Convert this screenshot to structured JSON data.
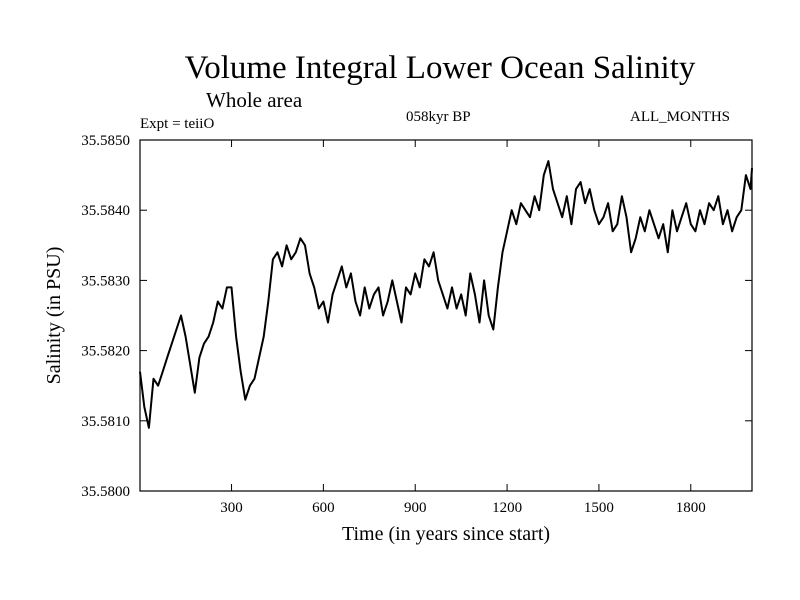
{
  "header": {
    "title": "Volume Integral Lower Ocean Salinity",
    "subtitle": "Whole area",
    "experiment": "Expt = teiiO",
    "period": "058kyr BP",
    "months": "ALL_MONTHS"
  },
  "chart_data": {
    "type": "line",
    "title": "Volume Integral Lower Ocean Salinity",
    "subtitle": "Whole area",
    "xlabel": "Time (in years since start)",
    "ylabel": "Salinity (in PSU)",
    "xlim": [
      1,
      2000
    ],
    "ylim": [
      35.58,
      35.585
    ],
    "xticks": [
      300,
      600,
      900,
      1200,
      1500,
      1800
    ],
    "yticks": [
      35.58,
      35.581,
      35.582,
      35.583,
      35.584,
      35.585
    ],
    "ytick_labels": [
      "35.5800",
      "35.5810",
      "35.5820",
      "35.5830",
      "35.5840",
      "35.5850"
    ],
    "grid": false,
    "series": [
      {
        "color": "#000000",
        "x": [
          1,
          15,
          30,
          45,
          60,
          75,
          90,
          105,
          120,
          135,
          150,
          165,
          180,
          195,
          210,
          225,
          240,
          255,
          270,
          285,
          300,
          315,
          330,
          345,
          360,
          375,
          390,
          405,
          420,
          435,
          450,
          465,
          480,
          495,
          510,
          525,
          540,
          555,
          570,
          585,
          600,
          615,
          630,
          645,
          660,
          675,
          690,
          705,
          720,
          735,
          750,
          765,
          780,
          795,
          810,
          825,
          840,
          855,
          870,
          885,
          900,
          915,
          930,
          945,
          960,
          975,
          990,
          1005,
          1020,
          1035,
          1050,
          1065,
          1080,
          1095,
          1110,
          1125,
          1140,
          1155,
          1170,
          1185,
          1200,
          1215,
          1230,
          1245,
          1260,
          1275,
          1290,
          1305,
          1320,
          1335,
          1350,
          1365,
          1380,
          1395,
          1410,
          1425,
          1440,
          1455,
          1470,
          1485,
          1500,
          1515,
          1530,
          1545,
          1560,
          1575,
          1590,
          1605,
          1620,
          1635,
          1650,
          1665,
          1680,
          1695,
          1710,
          1725,
          1740,
          1755,
          1770,
          1785,
          1800,
          1815,
          1830,
          1845,
          1860,
          1875,
          1890,
          1905,
          1920,
          1935,
          1950,
          1965,
          1980,
          1995,
          2000
        ],
        "values": [
          35.5817,
          35.5812,
          35.5809,
          35.5816,
          35.5815,
          35.5817,
          35.5819,
          35.5821,
          35.5823,
          35.5825,
          35.5822,
          35.5818,
          35.5814,
          35.5819,
          35.5821,
          35.5822,
          35.5824,
          35.5827,
          35.5826,
          35.5829,
          35.5829,
          35.5822,
          35.5817,
          35.5813,
          35.5815,
          35.5816,
          35.5819,
          35.5822,
          35.5827,
          35.5833,
          35.5834,
          35.5832,
          35.5835,
          35.5833,
          35.5834,
          35.5836,
          35.5835,
          35.5831,
          35.5829,
          35.5826,
          35.5827,
          35.5824,
          35.5828,
          35.583,
          35.5832,
          35.5829,
          35.5831,
          35.5827,
          35.5825,
          35.5829,
          35.5826,
          35.5828,
          35.5829,
          35.5825,
          35.5827,
          35.583,
          35.5827,
          35.5824,
          35.5829,
          35.5828,
          35.5831,
          35.5829,
          35.5833,
          35.5832,
          35.5834,
          35.583,
          35.5828,
          35.5826,
          35.5829,
          35.5826,
          35.5828,
          35.5825,
          35.5831,
          35.5828,
          35.5824,
          35.583,
          35.5825,
          35.5823,
          35.5829,
          35.5834,
          35.5837,
          35.584,
          35.5838,
          35.5841,
          35.584,
          35.5839,
          35.5842,
          35.584,
          35.5845,
          35.5847,
          35.5843,
          35.5841,
          35.5839,
          35.5842,
          35.5838,
          35.5843,
          35.5844,
          35.5841,
          35.5843,
          35.584,
          35.5838,
          35.5839,
          35.5841,
          35.5837,
          35.5838,
          35.5842,
          35.5839,
          35.5834,
          35.5836,
          35.5839,
          35.5837,
          35.584,
          35.5838,
          35.5836,
          35.5838,
          35.5834,
          35.584,
          35.5837,
          35.5839,
          35.5841,
          35.5838,
          35.5837,
          35.584,
          35.5838,
          35.5841,
          35.584,
          35.5842,
          35.5838,
          35.584,
          35.5837,
          35.5839,
          35.584,
          35.5845,
          35.5843,
          35.5846
        ]
      }
    ]
  }
}
